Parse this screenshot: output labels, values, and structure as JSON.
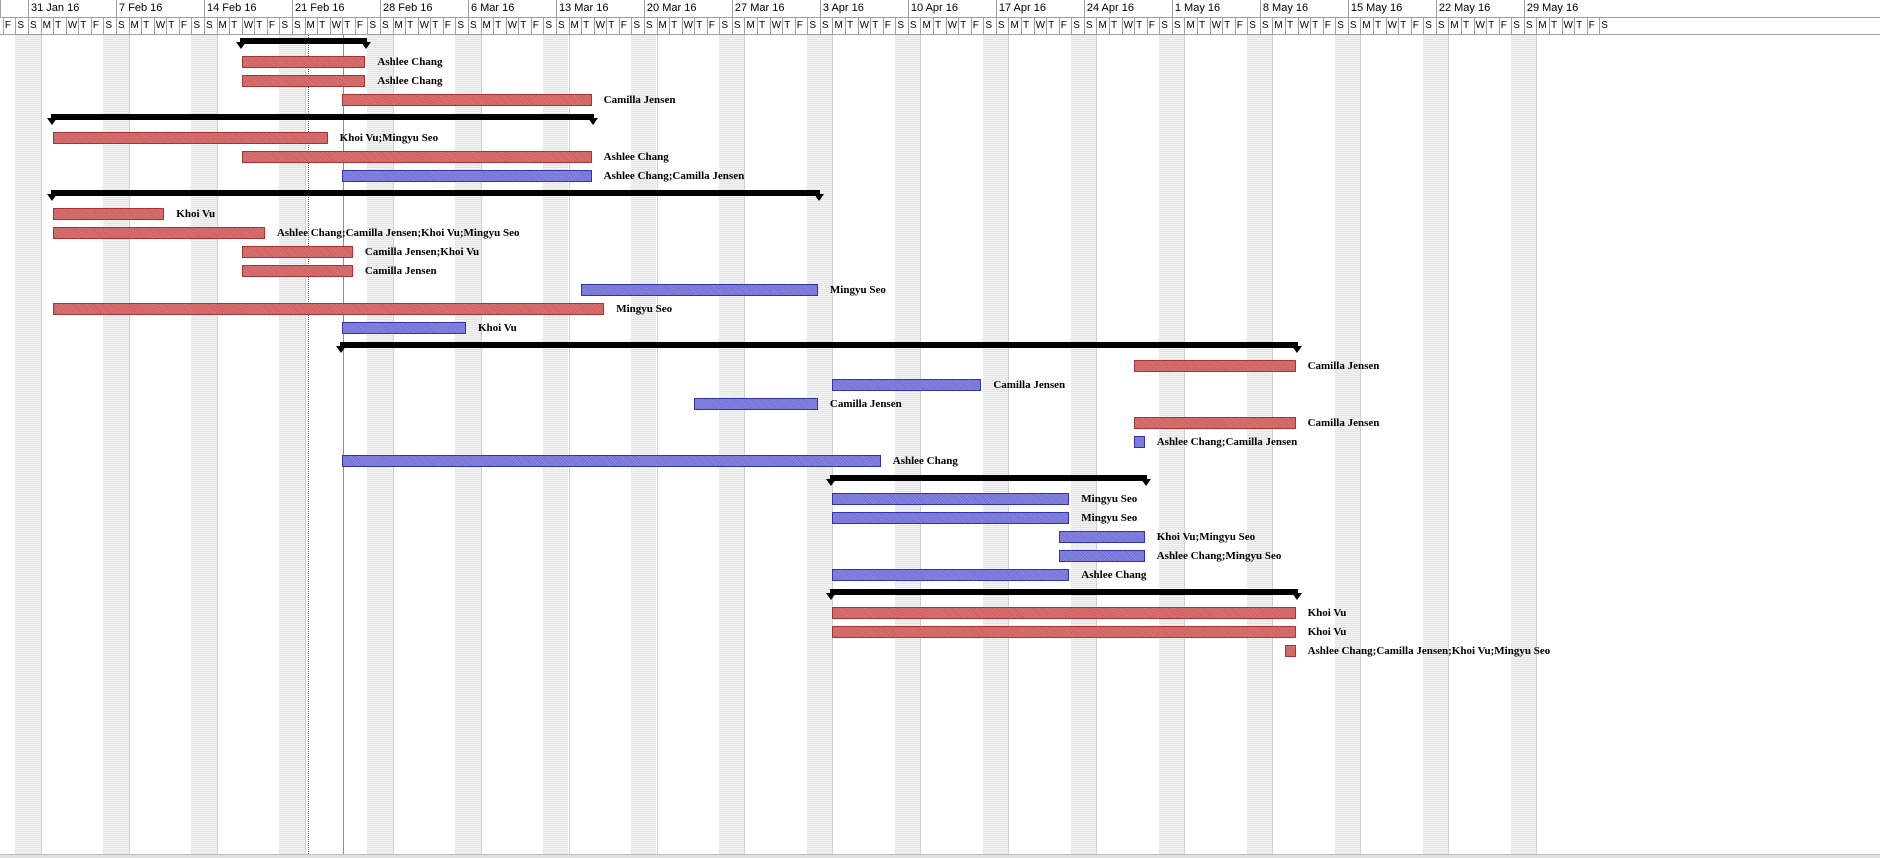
{
  "timescale": {
    "weeks": [
      "31 Jan 16",
      "7 Feb 16",
      "14 Feb 16",
      "21 Feb 16",
      "28 Feb 16",
      "6 Mar 16",
      "13 Mar 16",
      "20 Mar 16",
      "27 Mar 16",
      "3 Apr 16",
      "10 Apr 16",
      "17 Apr 16",
      "24 Apr 16",
      "1 May 16",
      "8 May 16",
      "15 May 16",
      "22 May 16",
      "29 May 16"
    ],
    "day_letters": [
      "S",
      "M",
      "T",
      "W",
      "T",
      "F",
      "S"
    ],
    "leading_days": [
      "F",
      "S"
    ]
  },
  "status_date_line": "dotted",
  "current_date_line": "green",
  "colors": {
    "critical": "#c95c5c",
    "noncritical": "#6e6ed4",
    "summary": "#000000",
    "current_date": "#33cc33"
  },
  "tasks": [
    {
      "type": "summary",
      "start": "2016-02-17",
      "end": "2016-02-26"
    },
    {
      "type": "red",
      "start": "2016-02-17",
      "end": "2016-02-26",
      "label": "Ashlee Chang"
    },
    {
      "type": "red",
      "start": "2016-02-17",
      "end": "2016-02-26",
      "label": "Ashlee Chang"
    },
    {
      "type": "red",
      "start": "2016-02-25",
      "end": "2016-03-15",
      "label": "Camilla Jensen"
    },
    {
      "type": "summary",
      "start": "2016-02-02",
      "end": "2016-03-15"
    },
    {
      "type": "red",
      "start": "2016-02-02",
      "end": "2016-02-23",
      "label": "Khoi Vu;Mingyu Seo"
    },
    {
      "type": "red",
      "start": "2016-02-17",
      "end": "2016-03-15",
      "label": "Ashlee Chang"
    },
    {
      "type": "blue",
      "start": "2016-02-25",
      "end": "2016-03-15",
      "label": "Ashlee Chang;Camilla Jensen"
    },
    {
      "type": "summary",
      "start": "2016-02-02",
      "end": "2016-04-02"
    },
    {
      "type": "red",
      "start": "2016-02-02",
      "end": "2016-02-10",
      "label": "Khoi Vu"
    },
    {
      "type": "red",
      "start": "2016-02-02",
      "end": "2016-02-18",
      "label": "Ashlee Chang;Camilla Jensen;Khoi Vu;Mingyu Seo"
    },
    {
      "type": "red",
      "start": "2016-02-17",
      "end": "2016-02-25",
      "label": "Camilla Jensen;Khoi Vu"
    },
    {
      "type": "red",
      "start": "2016-02-17",
      "end": "2016-02-25",
      "label": "Camilla Jensen"
    },
    {
      "type": "blue",
      "start": "2016-03-15",
      "end": "2016-04-02",
      "label": "Mingyu Seo"
    },
    {
      "type": "red",
      "start": "2016-02-02",
      "end": "2016-03-16",
      "label": "Mingyu Seo"
    },
    {
      "type": "blue",
      "start": "2016-02-25",
      "end": "2016-03-05",
      "label": "Khoi Vu"
    },
    {
      "type": "summary",
      "start": "2016-02-25",
      "end": "2016-05-10"
    },
    {
      "type": "red",
      "start": "2016-04-28",
      "end": "2016-05-10",
      "label": "Camilla Jensen"
    },
    {
      "type": "blue",
      "start": "2016-04-04",
      "end": "2016-04-15",
      "label": "Camilla Jensen"
    },
    {
      "type": "blue",
      "start": "2016-03-24",
      "end": "2016-04-02",
      "label": "Camilla Jensen"
    },
    {
      "type": "red",
      "start": "2016-04-28",
      "end": "2016-05-10",
      "label": "Camilla Jensen"
    },
    {
      "type": "blue",
      "start": "2016-04-28",
      "end": "2016-04-28",
      "label": "Ashlee Chang;Camilla Jensen"
    },
    {
      "type": "blue",
      "start": "2016-02-25",
      "end": "2016-04-07",
      "label": "Ashlee Chang"
    },
    {
      "type": "summary",
      "start": "2016-04-04",
      "end": "2016-04-28"
    },
    {
      "type": "blue",
      "start": "2016-04-04",
      "end": "2016-04-22",
      "label": "Mingyu Seo"
    },
    {
      "type": "blue",
      "start": "2016-04-04",
      "end": "2016-04-22",
      "label": "Mingyu Seo"
    },
    {
      "type": "blue",
      "start": "2016-04-22",
      "end": "2016-04-28",
      "label": "Khoi Vu;Mingyu Seo"
    },
    {
      "type": "blue",
      "start": "2016-04-22",
      "end": "2016-04-28",
      "label": "Ashlee Chang;Mingyu Seo"
    },
    {
      "type": "blue",
      "start": "2016-04-04",
      "end": "2016-04-22",
      "label": "Ashlee Chang"
    },
    {
      "type": "summary",
      "start": "2016-04-04",
      "end": "2016-05-10"
    },
    {
      "type": "red",
      "start": "2016-04-04",
      "end": "2016-05-10",
      "label": "Khoi Vu"
    },
    {
      "type": "red",
      "start": "2016-04-04",
      "end": "2016-05-10",
      "label": "Khoi Vu"
    },
    {
      "type": "red",
      "start": "2016-05-10",
      "end": "2016-05-10",
      "label": "Ashlee Chang;Camilla Jensen;Khoi Vu;Mingyu Seo"
    }
  ]
}
